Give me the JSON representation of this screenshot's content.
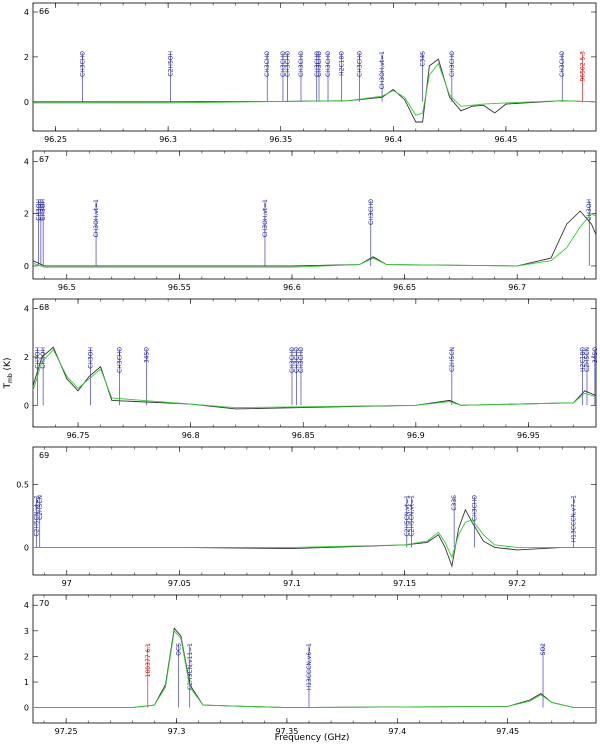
{
  "figure": {
    "xlabel": "Frequency (GHz)",
    "ylabel": "T",
    "ylabel_sub": "mb",
    "ylabel_unit": " (K)"
  },
  "chart_data": [
    {
      "type": "line",
      "panel_number": "66",
      "xlim": [
        96.24,
        96.49
      ],
      "ylim": [
        -1.3,
        4.4
      ],
      "xticks": [
        96.25,
        96.3,
        96.35,
        96.4,
        96.45
      ],
      "xtick_labels": [
        "96.25",
        "96.3",
        "96.35",
        "96.4",
        "96.45"
      ],
      "yticks": [
        0,
        2,
        4
      ],
      "ytick_labels": [
        "0",
        "2",
        "4"
      ],
      "series": [
        {
          "color": "#333333",
          "x": [
            96.24,
            96.3,
            96.35,
            96.38,
            96.395,
            96.4,
            96.405,
            96.41,
            96.413,
            96.416,
            96.42,
            96.425,
            96.43,
            96.435,
            96.44,
            96.445,
            96.45,
            96.475,
            96.49
          ],
          "y": [
            0.0,
            0.0,
            0.02,
            0.05,
            0.2,
            0.55,
            0.1,
            -0.9,
            -0.9,
            1.6,
            1.9,
            0.2,
            -0.4,
            -0.2,
            -0.15,
            -0.5,
            -0.1,
            0.05,
            0.0
          ]
        },
        {
          "color": "#33cc33",
          "x": [
            96.24,
            96.3,
            96.35,
            96.38,
            96.395,
            96.4,
            96.405,
            96.41,
            96.413,
            96.416,
            96.42,
            96.425,
            96.43,
            96.44,
            96.45,
            96.475,
            96.49
          ],
          "y": [
            -0.05,
            -0.05,
            0.02,
            0.05,
            0.25,
            0.5,
            0.2,
            -0.6,
            -0.5,
            1.2,
            1.7,
            0.3,
            -0.2,
            -0.1,
            -0.05,
            0.05,
            0.0
          ]
        }
      ],
      "line_labels": [
        {
          "x": 96.262,
          "label": "CH3CHO",
          "color": "#2222aa"
        },
        {
          "x": 96.301,
          "label": "C2H5OH",
          "color": "#2222aa"
        },
        {
          "x": 96.344,
          "label": "CH3CHO",
          "color": "#2222aa"
        },
        {
          "x": 96.351,
          "label": "CH3CHO",
          "color": "#2222aa"
        },
        {
          "x": 96.353,
          "label": "CH3CHO",
          "color": "#2222aa"
        },
        {
          "x": 96.359,
          "label": "CH3CHO",
          "color": "#2222aa"
        },
        {
          "x": 96.366,
          "label": "CH3CHO",
          "color": "#2222aa"
        },
        {
          "x": 96.367,
          "label": "CH3CHO",
          "color": "#2222aa"
        },
        {
          "x": 96.371,
          "label": "CH3CHO",
          "color": "#2222aa"
        },
        {
          "x": 96.377,
          "label": "H2C18O",
          "color": "#2222aa"
        },
        {
          "x": 96.385,
          "label": "CH3CHO",
          "color": "#2222aa"
        },
        {
          "x": 96.395,
          "label": "CH3OH,vt=1",
          "color": "#2222aa"
        },
        {
          "x": 96.413,
          "label": "C34S",
          "color": "#2222aa"
        },
        {
          "x": 96.426,
          "label": "CH3CHO",
          "color": "#2222aa"
        },
        {
          "x": 96.475,
          "label": "CH3CHO",
          "color": "#2222aa"
        },
        {
          "x": 96.484,
          "label": "96502 5.3",
          "color": "#dd0000"
        }
      ]
    },
    {
      "type": "line",
      "panel_number": "67",
      "xlim": [
        96.485,
        96.735
      ],
      "ylim": [
        -0.5,
        4.4
      ],
      "xticks": [
        96.5,
        96.55,
        96.6,
        96.65,
        96.7
      ],
      "xtick_labels": [
        "96.5",
        "96.55",
        "96.6",
        "96.65",
        "96.7"
      ],
      "yticks": [
        0,
        2,
        4
      ],
      "ytick_labels": [
        "0",
        "2",
        "4"
      ],
      "series": [
        {
          "color": "#333333",
          "x": [
            96.485,
            96.49,
            96.6,
            96.63,
            96.636,
            96.642,
            96.7,
            96.715,
            96.722,
            96.728,
            96.733,
            96.735
          ],
          "y": [
            0.2,
            0.0,
            0.0,
            0.05,
            0.35,
            0.05,
            0.0,
            0.3,
            1.6,
            2.1,
            1.6,
            1.2
          ]
        },
        {
          "color": "#33cc33",
          "x": [
            96.485,
            96.49,
            96.6,
            96.63,
            96.636,
            96.642,
            96.7,
            96.715,
            96.722,
            96.728,
            96.733,
            96.735
          ],
          "y": [
            0.1,
            -0.05,
            -0.05,
            0.05,
            0.3,
            0.05,
            0.0,
            0.2,
            0.7,
            1.5,
            2.0,
            1.9
          ]
        }
      ],
      "line_labels": [
        {
          "x": 96.4875,
          "label": "CH3OH",
          "color": "#2222aa"
        },
        {
          "x": 96.4885,
          "label": "CH3OH",
          "color": "#2222aa"
        },
        {
          "x": 96.4895,
          "label": "CH3OH",
          "color": "#2222aa"
        },
        {
          "x": 96.513,
          "label": "CH3OH,vt=1",
          "color": "#2222aa"
        },
        {
          "x": 96.588,
          "label": "CH3OH,vt=1",
          "color": "#2222aa"
        },
        {
          "x": 96.635,
          "label": "CH3CHO",
          "color": "#2222aa"
        },
        {
          "x": 96.732,
          "label": "CH3OH",
          "color": "#2222aa"
        }
      ]
    },
    {
      "type": "line",
      "panel_number": "68",
      "xlim": [
        96.73,
        96.98
      ],
      "ylim": [
        -0.9,
        4.4
      ],
      "xticks": [
        96.75,
        96.8,
        96.85,
        96.9,
        96.95
      ],
      "xtick_labels": [
        "96.75",
        "96.8",
        "96.85",
        "96.9",
        "96.95"
      ],
      "yticks": [
        0,
        2,
        4
      ],
      "ytick_labels": [
        "0",
        "2",
        "4"
      ],
      "series": [
        {
          "color": "#333333",
          "x": [
            96.73,
            96.734,
            96.739,
            96.745,
            96.75,
            96.755,
            96.76,
            96.765,
            96.8,
            96.82,
            96.9,
            96.915,
            96.92,
            96.97,
            96.975,
            96.98
          ],
          "y": [
            0.8,
            2.0,
            2.4,
            1.1,
            0.6,
            1.2,
            1.6,
            0.2,
            0.05,
            -0.15,
            0.0,
            0.2,
            0.0,
            0.1,
            0.6,
            0.4
          ]
        },
        {
          "color": "#33cc33",
          "x": [
            96.73,
            96.734,
            96.739,
            96.745,
            96.75,
            96.755,
            96.76,
            96.765,
            96.8,
            96.82,
            96.9,
            96.915,
            96.92,
            96.97,
            96.975,
            96.98
          ],
          "y": [
            0.6,
            1.8,
            2.3,
            1.2,
            0.7,
            1.1,
            1.5,
            0.3,
            0.05,
            -0.1,
            0.0,
            0.15,
            0.0,
            0.1,
            0.5,
            0.35
          ]
        }
      ],
      "line_labels": [
        {
          "x": 96.732,
          "label": "CH3OH",
          "color": "#2222aa"
        },
        {
          "x": 96.7345,
          "label": "CH3OH",
          "color": "#2222aa"
        },
        {
          "x": 96.7555,
          "label": "CH3OH",
          "color": "#2222aa"
        },
        {
          "x": 96.7685,
          "label": "CH3CHO",
          "color": "#2222aa"
        },
        {
          "x": 96.7805,
          "label": "34SO",
          "color": "#2222aa"
        },
        {
          "x": 96.845,
          "label": "CH3CHO",
          "color": "#2222aa"
        },
        {
          "x": 96.847,
          "label": "CH3CHO",
          "color": "#2222aa"
        },
        {
          "x": 96.849,
          "label": "CH3CHO",
          "color": "#2222aa"
        },
        {
          "x": 96.916,
          "label": "C2H5CN",
          "color": "#2222aa"
        },
        {
          "x": 96.974,
          "label": "H2C18O",
          "color": "#2222aa"
        },
        {
          "x": 96.976,
          "label": "C2H5CN",
          "color": "#2222aa"
        },
        {
          "x": 96.9795,
          "label": "34SO",
          "color": "#2222aa"
        }
      ]
    },
    {
      "type": "line",
      "panel_number": "69",
      "xlim": [
        96.985,
        97.235
      ],
      "ylim": [
        -0.22,
        0.8
      ],
      "xticks": [
        97.0,
        97.05,
        97.1,
        97.15,
        97.2
      ],
      "xtick_labels": [
        "97",
        "97.05",
        "97.1",
        "97.15",
        "97.2"
      ],
      "yticks": [
        0,
        0.5
      ],
      "ytick_labels": [
        "0",
        "0.5"
      ],
      "series": [
        {
          "color": "#333333",
          "x": [
            96.985,
            97.05,
            97.1,
            97.15,
            97.16,
            97.165,
            97.168,
            97.171,
            97.174,
            97.177,
            97.18,
            97.185,
            97.19,
            97.2,
            97.22,
            97.235
          ],
          "y": [
            0.0,
            0.0,
            -0.01,
            0.02,
            0.04,
            0.1,
            0.0,
            -0.15,
            0.15,
            0.3,
            0.2,
            0.05,
            0.0,
            -0.02,
            0.0,
            0.0
          ]
        },
        {
          "color": "#33cc33",
          "x": [
            96.985,
            97.05,
            97.1,
            97.15,
            97.16,
            97.165,
            97.168,
            97.171,
            97.174,
            97.177,
            97.18,
            97.185,
            97.19,
            97.2,
            97.22,
            97.235
          ],
          "y": [
            0.0,
            0.0,
            0.0,
            0.02,
            0.05,
            0.12,
            0.04,
            -0.08,
            0.1,
            0.2,
            0.22,
            0.1,
            0.02,
            0.0,
            0.0,
            0.0
          ]
        }
      ],
      "line_labels": [
        {
          "x": 96.9865,
          "label": "C2H5CN,vt=1",
          "color": "#2222aa"
        },
        {
          "x": 96.988,
          "label": "C2H5CN",
          "color": "#2222aa"
        },
        {
          "x": 97.151,
          "label": "C2H5CN,vt=1",
          "color": "#2222aa"
        },
        {
          "x": 97.153,
          "label": "C2H5CN,vt=1",
          "color": "#2222aa"
        },
        {
          "x": 97.172,
          "label": "C33S",
          "color": "#2222aa"
        },
        {
          "x": 97.181,
          "label": "CH3CHO",
          "color": "#2222aa"
        },
        {
          "x": 97.225,
          "label": "H13CCCN,v7=1",
          "color": "#2222aa"
        }
      ]
    },
    {
      "type": "line",
      "panel_number": "70",
      "xlim": [
        97.235,
        97.49
      ],
      "ylim": [
        -0.6,
        4.4
      ],
      "xticks": [
        97.25,
        97.3,
        97.35,
        97.4,
        97.45
      ],
      "xtick_labels": [
        "97.25",
        "97.3",
        "97.35",
        "97.4",
        "97.45"
      ],
      "yticks": [
        0,
        1,
        2,
        3,
        4
      ],
      "ytick_labels": [
        "0",
        "1",
        "2",
        "3",
        "4"
      ],
      "series": [
        {
          "color": "#333333",
          "x": [
            97.235,
            97.28,
            97.29,
            97.295,
            97.299,
            97.302,
            97.306,
            97.312,
            97.35,
            97.45,
            97.46,
            97.465,
            97.47,
            97.48,
            97.49
          ],
          "y": [
            0.0,
            0.0,
            0.1,
            0.9,
            3.1,
            2.8,
            0.9,
            0.1,
            0.0,
            0.05,
            0.3,
            0.55,
            0.2,
            0.0,
            0.0
          ]
        },
        {
          "color": "#33cc33",
          "x": [
            97.235,
            97.28,
            97.29,
            97.295,
            97.299,
            97.302,
            97.306,
            97.312,
            97.35,
            97.45,
            97.46,
            97.465,
            97.47,
            97.48,
            97.49
          ],
          "y": [
            0.0,
            0.0,
            0.1,
            0.8,
            3.0,
            2.7,
            0.8,
            0.1,
            0.0,
            0.05,
            0.25,
            0.5,
            0.2,
            0.0,
            0.0
          ]
        }
      ],
      "line_labels": [
        {
          "x": 97.287,
          "label": "100377 6.1",
          "color": "#dd0000"
        },
        {
          "x": 97.301,
          "label": "OCS",
          "color": "#2222aa"
        },
        {
          "x": 97.306,
          "label": "C2H3CN,v11=1",
          "color": "#2222aa"
        },
        {
          "x": 97.36,
          "label": "H13CCCN,v6=1",
          "color": "#2222aa"
        },
        {
          "x": 97.466,
          "label": "SO2",
          "color": "#2222aa"
        }
      ]
    }
  ]
}
